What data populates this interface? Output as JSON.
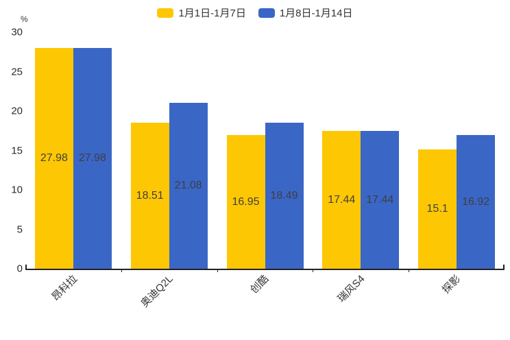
{
  "legend": {
    "items": [
      {
        "label": "1月1日-1月7日"
      },
      {
        "label": "1月8日-1月14日"
      }
    ]
  },
  "chart_data": {
    "type": "bar",
    "title": "",
    "categories": [
      "昂科拉",
      "奥迪Q2L",
      "创酷",
      "瑞风S4",
      "探影"
    ],
    "series": [
      {
        "name": "1月1日-1月7日",
        "color": "#FDC703",
        "values": [
          27.98,
          18.51,
          16.95,
          17.44,
          15.1
        ]
      },
      {
        "name": "1月8日-1月14日",
        "color": "#3A66C6",
        "values": [
          27.98,
          21.08,
          18.49,
          17.44,
          16.92
        ]
      }
    ],
    "xlabel": "",
    "ylabel": "%",
    "ylim": [
      0,
      30
    ],
    "yticks": [
      0,
      5,
      10,
      15,
      20,
      25,
      30
    ],
    "grid": false,
    "legend_position": "top",
    "value_labels": "inside-center",
    "value_label_color": "#3f3f3f",
    "axis_color": "#222222"
  }
}
